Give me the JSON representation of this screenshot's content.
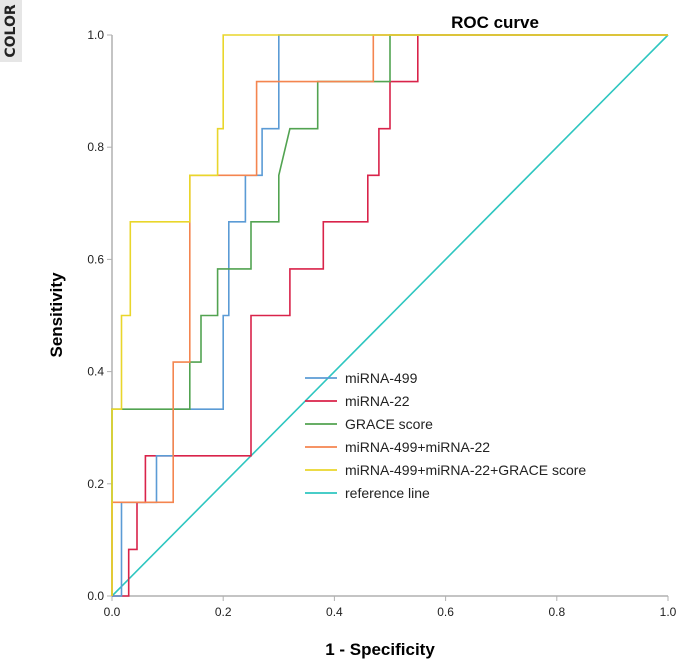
{
  "badge": "COLOR",
  "chart_data": {
    "type": "line",
    "title": "ROC curve",
    "xlabel": "1 - Specificity",
    "ylabel": "Sensitivity",
    "xlim": [
      0,
      1
    ],
    "ylim": [
      0,
      1
    ],
    "xticks": [
      "0.0",
      "0.2",
      "0.4",
      "0.6",
      "0.8",
      "1.0"
    ],
    "yticks": [
      "0.0",
      "0.2",
      "0.4",
      "0.6",
      "0.8",
      "1.0"
    ],
    "grid": false,
    "legend_position": "lower-right inside",
    "series": [
      {
        "name": "miRNA-499",
        "color": "#5b9bd5",
        "points": [
          [
            0,
            0
          ],
          [
            0.017,
            0
          ],
          [
            0.017,
            0.167
          ],
          [
            0.08,
            0.167
          ],
          [
            0.08,
            0.25
          ],
          [
            0.11,
            0.25
          ],
          [
            0.11,
            0.333
          ],
          [
            0.2,
            0.333
          ],
          [
            0.2,
            0.5
          ],
          [
            0.21,
            0.5
          ],
          [
            0.21,
            0.667
          ],
          [
            0.24,
            0.667
          ],
          [
            0.24,
            0.75
          ],
          [
            0.27,
            0.75
          ],
          [
            0.27,
            0.833
          ],
          [
            0.3,
            0.833
          ],
          [
            0.3,
            1.0
          ],
          [
            1,
            1
          ]
        ]
      },
      {
        "name": "miRNA-22",
        "color": "#d9234a",
        "points": [
          [
            0,
            0
          ],
          [
            0.03,
            0
          ],
          [
            0.03,
            0.083
          ],
          [
            0.045,
            0.083
          ],
          [
            0.045,
            0.167
          ],
          [
            0.06,
            0.167
          ],
          [
            0.06,
            0.25
          ],
          [
            0.25,
            0.25
          ],
          [
            0.25,
            0.5
          ],
          [
            0.32,
            0.5
          ],
          [
            0.32,
            0.583
          ],
          [
            0.38,
            0.583
          ],
          [
            0.38,
            0.667
          ],
          [
            0.46,
            0.667
          ],
          [
            0.46,
            0.75
          ],
          [
            0.48,
            0.75
          ],
          [
            0.48,
            0.833
          ],
          [
            0.5,
            0.833
          ],
          [
            0.5,
            0.917
          ],
          [
            0.55,
            0.917
          ],
          [
            0.55,
            1.0
          ],
          [
            1,
            1
          ]
        ]
      },
      {
        "name": "GRACE score",
        "color": "#52a351",
        "points": [
          [
            0,
            0
          ],
          [
            0,
            0.333
          ],
          [
            0.14,
            0.333
          ],
          [
            0.14,
            0.417
          ],
          [
            0.16,
            0.417
          ],
          [
            0.16,
            0.5
          ],
          [
            0.19,
            0.5
          ],
          [
            0.19,
            0.583
          ],
          [
            0.25,
            0.583
          ],
          [
            0.25,
            0.667
          ],
          [
            0.3,
            0.667
          ],
          [
            0.3,
            0.75
          ],
          [
            0.32,
            0.833
          ],
          [
            0.37,
            0.833
          ],
          [
            0.37,
            0.917
          ],
          [
            0.5,
            0.917
          ],
          [
            0.5,
            1.0
          ],
          [
            1,
            1
          ]
        ]
      },
      {
        "name": "miRNA-499+miRNA-22",
        "color": "#f4854f",
        "points": [
          [
            0,
            0
          ],
          [
            0,
            0.167
          ],
          [
            0.11,
            0.167
          ],
          [
            0.11,
            0.417
          ],
          [
            0.14,
            0.417
          ],
          [
            0.14,
            0.75
          ],
          [
            0.26,
            0.75
          ],
          [
            0.26,
            0.917
          ],
          [
            0.47,
            0.917
          ],
          [
            0.47,
            1.0
          ],
          [
            1,
            1
          ]
        ]
      },
      {
        "name": "miRNA-499+miRNA-22+GRACE score",
        "color": "#e9d62b",
        "points": [
          [
            0,
            0
          ],
          [
            0,
            0.333
          ],
          [
            0.017,
            0.333
          ],
          [
            0.017,
            0.5
          ],
          [
            0.033,
            0.5
          ],
          [
            0.033,
            0.667
          ],
          [
            0.14,
            0.667
          ],
          [
            0.14,
            0.75
          ],
          [
            0.19,
            0.75
          ],
          [
            0.19,
            0.833
          ],
          [
            0.2,
            0.833
          ],
          [
            0.2,
            1.0
          ],
          [
            1,
            1
          ]
        ]
      },
      {
        "name": "reference line",
        "color": "#2ec6c0",
        "points": [
          [
            0,
            0
          ],
          [
            1,
            1
          ]
        ]
      }
    ]
  }
}
